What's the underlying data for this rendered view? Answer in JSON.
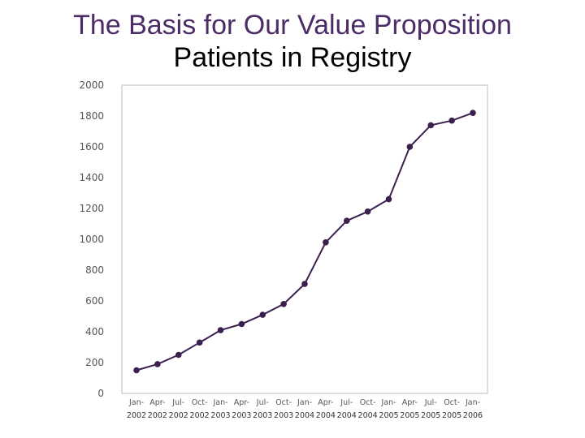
{
  "slide": {
    "title": "The Basis for Our Value Proposition",
    "subtitle": "Patients in Registry"
  },
  "colors": {
    "title": "#4b2c67",
    "series": "#3b1f4f",
    "axis_text": "#555555",
    "frame": "#bbbbbb"
  },
  "chart_data": {
    "type": "line",
    "title": "",
    "xlabel": "",
    "ylabel": "",
    "ylim": [
      0,
      2000
    ],
    "yticks": [
      0,
      200,
      400,
      600,
      800,
      1000,
      1200,
      1400,
      1600,
      1800,
      2000
    ],
    "grid": false,
    "legend": "none",
    "categories": [
      [
        "Jan-",
        "2002"
      ],
      [
        "Apr-",
        "2002"
      ],
      [
        "Jul-",
        "2002"
      ],
      [
        "Oct-",
        "2002"
      ],
      [
        "Jan-",
        "2003"
      ],
      [
        "Apr-",
        "2003"
      ],
      [
        "Jul-",
        "2003"
      ],
      [
        "Oct-",
        "2003"
      ],
      [
        "Jan-",
        "2004"
      ],
      [
        "Apr-",
        "2004"
      ],
      [
        "Jul-",
        "2004"
      ],
      [
        "Oct-",
        "2004"
      ],
      [
        "Jan-",
        "2005"
      ],
      [
        "Apr-",
        "2005"
      ],
      [
        "Jul-",
        "2005"
      ],
      [
        "Oct-",
        "2005"
      ],
      [
        "Jan-",
        "2006"
      ]
    ],
    "series": [
      {
        "values": [
          150,
          190,
          250,
          330,
          410,
          450,
          510,
          580,
          710,
          980,
          1120,
          1180,
          1260,
          1600,
          1740,
          1770,
          1820
        ]
      }
    ]
  }
}
